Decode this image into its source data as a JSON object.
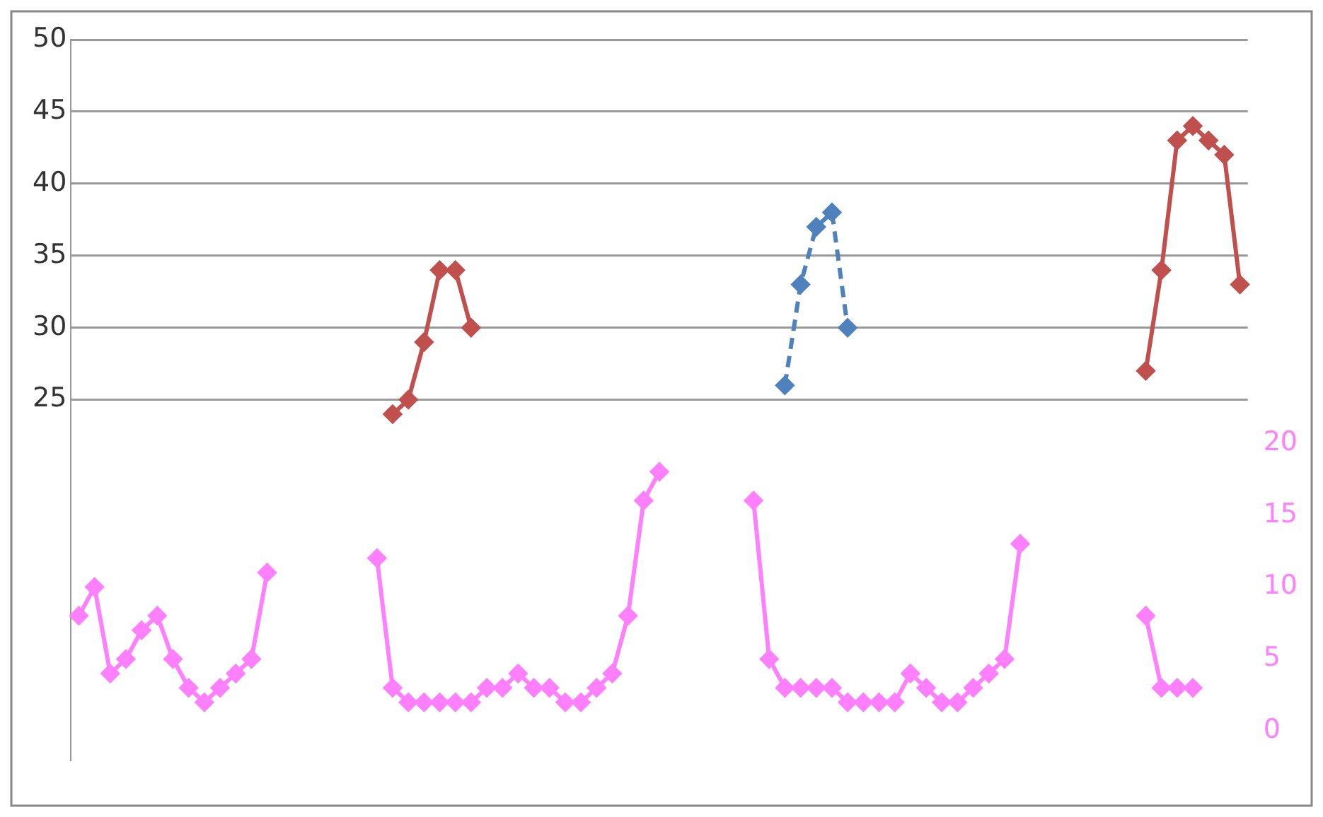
{
  "chart_data": {
    "type": "line",
    "categories": [
      null,
      null,
      null,
      null,
      null,
      null,
      null,
      null,
      null,
      null,
      null,
      null,
      null,
      null,
      null,
      null,
      null,
      null,
      null,
      null,
      null,
      null,
      null,
      null,
      null,
      null,
      null,
      null,
      null,
      null,
      null,
      null,
      null,
      null,
      null,
      null,
      null,
      null,
      null,
      null,
      null,
      null,
      null,
      null,
      null,
      null,
      null,
      null,
      null,
      null,
      null,
      null,
      null,
      null,
      null,
      null,
      null,
      null,
      null,
      null,
      null,
      null,
      null,
      null,
      null,
      null,
      null,
      null,
      null,
      null,
      null,
      null,
      null,
      null,
      null
    ],
    "series": [
      {
        "color": "#ff80ff",
        "axis": "y2",
        "values": [
          8,
          10,
          4,
          5,
          7,
          8,
          5,
          3,
          2,
          3,
          4,
          5,
          11,
          null,
          null,
          null,
          null,
          null,
          null,
          12,
          3,
          2,
          2,
          2,
          2,
          2,
          3,
          3,
          4,
          3,
          3,
          2,
          2,
          3,
          4,
          8,
          16,
          18,
          null,
          null,
          null,
          null,
          null,
          16,
          5,
          3,
          3,
          3,
          3,
          2,
          2,
          2,
          2,
          4,
          3,
          2,
          2,
          3,
          4,
          5,
          13,
          null,
          null,
          null,
          null,
          null,
          null,
          null,
          8,
          3,
          3,
          3,
          null,
          null,
          null
        ]
      },
      {
        "color": "#c0504d",
        "values": [
          null,
          null,
          null,
          null,
          null,
          null,
          null,
          null,
          null,
          null,
          null,
          null,
          null,
          null,
          null,
          null,
          null,
          null,
          null,
          null,
          24,
          25,
          29,
          34,
          34,
          30,
          null,
          null,
          null,
          null,
          null,
          null,
          null,
          null,
          null,
          null,
          null,
          null,
          null,
          null,
          null,
          null,
          null,
          null,
          null,
          null,
          null,
          null,
          null,
          null,
          null,
          null,
          null,
          null,
          null,
          null,
          null,
          null,
          null,
          null,
          null,
          null,
          null,
          null,
          null,
          null,
          null,
          null,
          27,
          34,
          43,
          44,
          43,
          42,
          33
        ]
      },
      {
        "color": "#4f81bd",
        "line_style": "dashed",
        "values": [
          null,
          null,
          null,
          null,
          null,
          null,
          null,
          null,
          null,
          null,
          null,
          null,
          null,
          null,
          null,
          null,
          null,
          null,
          null,
          null,
          null,
          null,
          null,
          null,
          null,
          null,
          null,
          null,
          null,
          null,
          null,
          null,
          null,
          null,
          null,
          null,
          null,
          null,
          null,
          null,
          null,
          null,
          null,
          null,
          null,
          26,
          33,
          37,
          38,
          30,
          null,
          null,
          null,
          null,
          null,
          null,
          null,
          null,
          null,
          null,
          null,
          null,
          null,
          null,
          null,
          null,
          null,
          null,
          null,
          null,
          null,
          null,
          null,
          null,
          null
        ]
      }
    ],
    "ylim": [
      0,
      50
    ],
    "yticks": [
      25,
      30,
      35,
      40,
      45,
      50
    ],
    "y2lim": [
      -2,
      48
    ],
    "y2ticks": [
      0,
      5,
      10,
      15,
      20
    ],
    "grid": "y",
    "marker": "diamond",
    "line_style": "solid",
    "legend": false
  }
}
